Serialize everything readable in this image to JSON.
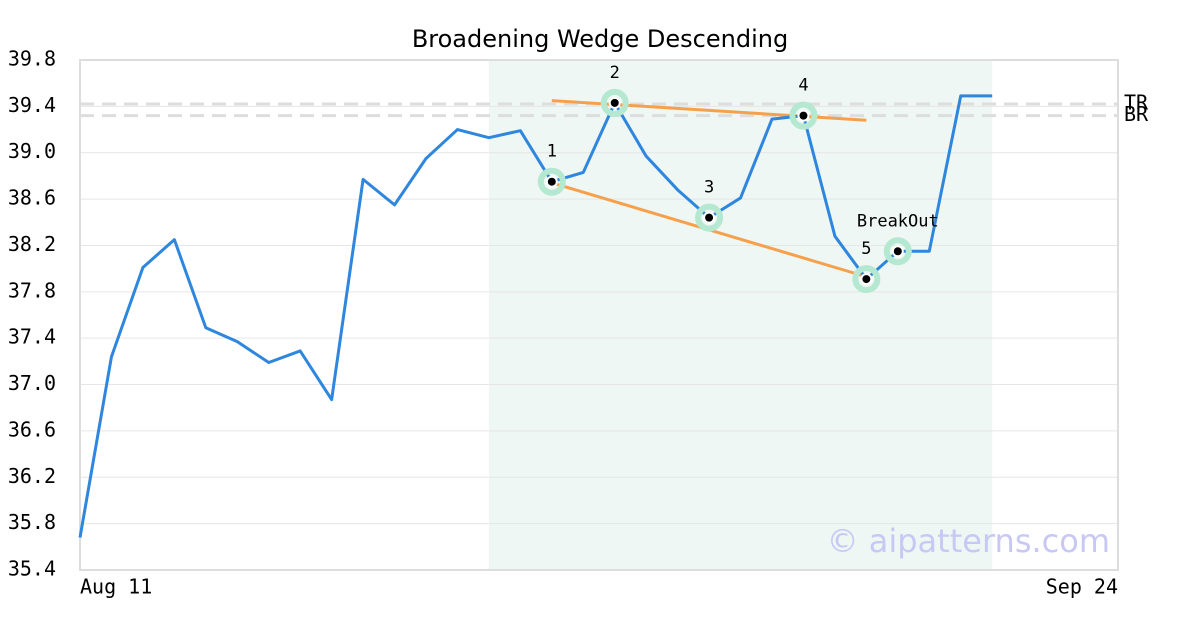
{
  "chart_data": {
    "type": "line",
    "title": "Broadening Wedge Descending",
    "watermark": "© aipatterns.com",
    "x": [
      0,
      1,
      2,
      3,
      4,
      5,
      6,
      7,
      8,
      9,
      10,
      11,
      12,
      13,
      14,
      15,
      16,
      17,
      18,
      19,
      20,
      21,
      22,
      23,
      24,
      25,
      26,
      27,
      28,
      29
    ],
    "xlim": [
      0,
      33
    ],
    "xticks": [
      {
        "value": 0,
        "label": "Aug 11"
      },
      {
        "value": 33,
        "label": "Sep 24"
      }
    ],
    "ylim": [
      35.4,
      39.8
    ],
    "yticks": [
      35.4,
      35.8,
      36.2,
      36.6,
      {
        "value": 37,
        "label": "37.0"
      },
      37.4,
      37.8,
      38.2,
      38.6,
      {
        "value": 39,
        "label": "39.0"
      },
      39.4,
      39.8
    ],
    "grid": true,
    "series": [
      {
        "name": "Price",
        "color": "#2e86de",
        "values": [
          35.68,
          37.24,
          38.01,
          38.25,
          37.49,
          37.37,
          37.19,
          37.29,
          36.87,
          38.77,
          38.55,
          38.95,
          39.2,
          39.13,
          39.19,
          38.75,
          38.83,
          39.43,
          38.97,
          38.68,
          38.44,
          38.61,
          39.29,
          39.32,
          38.28,
          37.91,
          38.15,
          38.15,
          39.49,
          39.49
        ]
      }
    ],
    "highlight": {
      "xlim": [
        13,
        29
      ],
      "color": "#eef7f3"
    },
    "trendlines": [
      {
        "color": "#f7a04b",
        "x": [
          15,
          25
        ],
        "y": [
          39.45,
          39.28
        ]
      },
      {
        "color": "#f7a04b",
        "x": [
          15,
          25
        ],
        "y": [
          38.74,
          37.93
        ]
      }
    ],
    "reference_lines": [
      {
        "label": "TR",
        "value": 39.42,
        "color": "#dddddd"
      },
      {
        "label": "BR",
        "value": 39.32,
        "color": "#dddddd"
      }
    ],
    "pattern_points": [
      {
        "label": "1",
        "index": 15
      },
      {
        "label": "2",
        "index": 17
      },
      {
        "label": "3",
        "index": 20
      },
      {
        "label": "4",
        "index": 23
      },
      {
        "label": "5",
        "index": 25
      },
      {
        "label": "BreakOut",
        "index": 26
      }
    ],
    "marker_color": "#b5e8d0"
  }
}
